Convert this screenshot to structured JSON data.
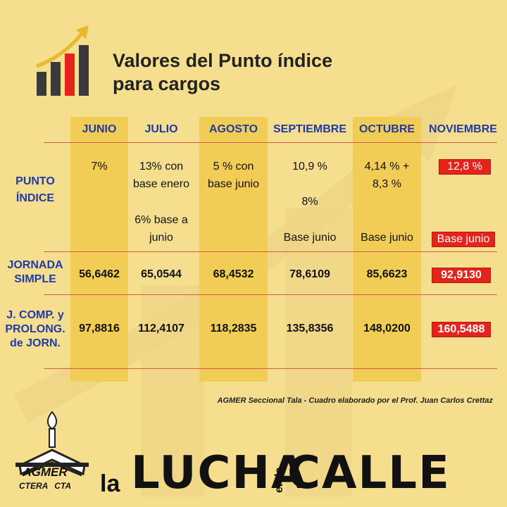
{
  "title_line1": "Valores del Punto índice",
  "title_line2": "para cargos",
  "months": [
    "JUNIO",
    "JULIO",
    "AGOSTO",
    "SEPTIEMBRE",
    "OCTUBRE",
    "NOVIEMBRE"
  ],
  "rows": {
    "punto": {
      "label1": "PUNTO",
      "label2": "ÍNDICE",
      "junio": "7%",
      "julio_a": "13% con",
      "julio_b": "base enero",
      "julio_c": "6% base a",
      "julio_d": "junio",
      "agosto_a": "5 % con",
      "agosto_b": "base junio",
      "sept_a": "10,9 %",
      "sept_b": "8%",
      "sept_c": "Base junio",
      "oct_a": "4,14 % +",
      "oct_b": "8,3 %",
      "oct_c": "Base junio",
      "nov_a": "12,8 %",
      "nov_b": "Base junio"
    },
    "jornada": {
      "label1": "JORNADA",
      "label2": "SIMPLE",
      "values": [
        "56,6462",
        "65,0544",
        "68,4532",
        "78,6109",
        "85,6623",
        "92,9130"
      ]
    },
    "jcomp": {
      "label1": "J. COMP. y",
      "label2": "PROLONG.",
      "label3": "de JORN.",
      "values": [
        "97,8816",
        "112,4107",
        "118,2835",
        "135,8356",
        "148,0200",
        "160,5488"
      ]
    }
  },
  "credit": "AGMER Seccional Tala - Cuadro elaborado por el Prof. Juan Carlos Crettaz",
  "brand": {
    "name": "AGMER",
    "sub1": "CTERA",
    "sub2": "CTA"
  },
  "slogan": {
    "la": "la",
    "lucha": "LUCHA",
    "enla": "en la",
    "calle": "CALLE"
  },
  "colors": {
    "background": "#f5df8f",
    "band": "#f2cd55",
    "header": "#1f3aa8",
    "highlight": "#e3231c",
    "rule": "#d55a4a"
  },
  "icons": [
    "rising-bar-chart-icon",
    "agmer-torch-book-logo"
  ]
}
